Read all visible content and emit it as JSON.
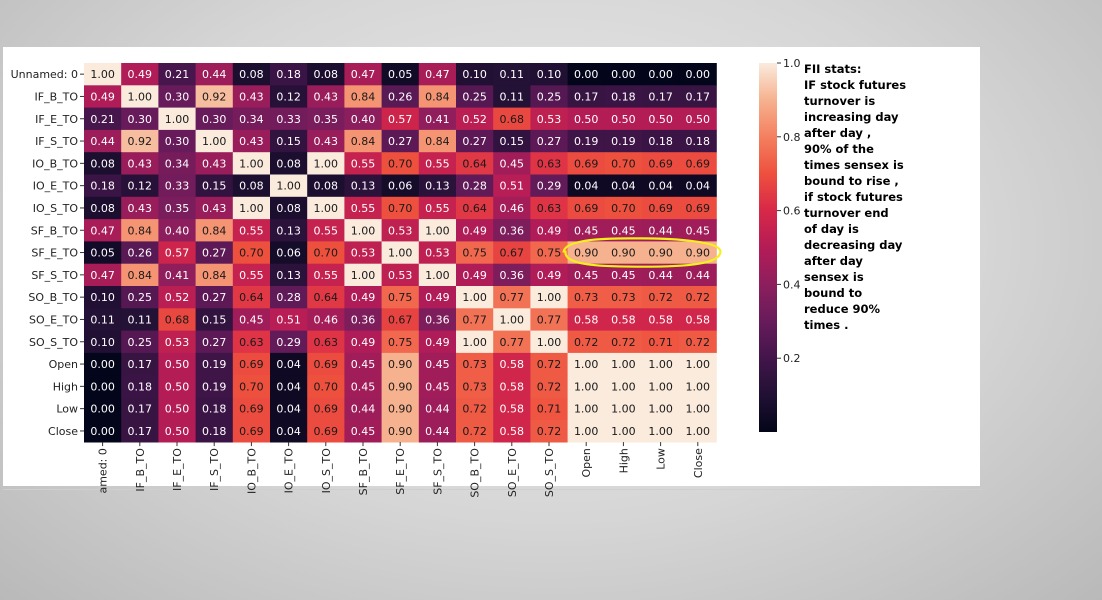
{
  "chart_data": {
    "type": "heatmap",
    "rows": [
      "Unnamed: 0",
      "IF_B_TO",
      "IF_E_TO",
      "IF_S_TO",
      "IO_B_TO",
      "IO_E_TO",
      "IO_S_TO",
      "SF_B_TO",
      "SF_E_TO",
      "SF_S_TO",
      "SO_B_TO",
      "SO_E_TO",
      "SO_S_TO",
      "Open",
      "High",
      "Low",
      "Close"
    ],
    "x_tick_labels": [
      "amed: 0",
      "IF_B_TO",
      "IF_E_TO",
      "IF_S_TO",
      "IO_B_TO",
      "IO_E_TO",
      "IO_S_TO",
      "SF_B_TO",
      "SF_E_TO",
      "SF_S_TO",
      "SO_B_TO",
      "SO_E_TO",
      "SO_S_TO",
      "Open",
      "High",
      "Low",
      "Close"
    ],
    "values": [
      [
        1.0,
        0.49,
        0.21,
        0.44,
        0.08,
        0.18,
        0.08,
        0.47,
        0.05,
        0.47,
        0.1,
        0.11,
        0.1,
        0.0,
        0.0,
        0.0,
        0.0
      ],
      [
        0.49,
        1.0,
        0.3,
        0.92,
        0.43,
        0.12,
        0.43,
        0.84,
        0.26,
        0.84,
        0.25,
        0.11,
        0.25,
        0.17,
        0.18,
        0.17,
        0.17
      ],
      [
        0.21,
        0.3,
        1.0,
        0.3,
        0.34,
        0.33,
        0.35,
        0.4,
        0.57,
        0.41,
        0.52,
        0.68,
        0.53,
        0.5,
        0.5,
        0.5,
        0.5
      ],
      [
        0.44,
        0.92,
        0.3,
        1.0,
        0.43,
        0.15,
        0.43,
        0.84,
        0.27,
        0.84,
        0.27,
        0.15,
        0.27,
        0.19,
        0.19,
        0.18,
        0.18
      ],
      [
        0.08,
        0.43,
        0.34,
        0.43,
        1.0,
        0.08,
        1.0,
        0.55,
        0.7,
        0.55,
        0.64,
        0.45,
        0.63,
        0.69,
        0.7,
        0.69,
        0.69
      ],
      [
        0.18,
        0.12,
        0.33,
        0.15,
        0.08,
        1.0,
        0.08,
        0.13,
        0.06,
        0.13,
        0.28,
        0.51,
        0.29,
        0.04,
        0.04,
        0.04,
        0.04
      ],
      [
        0.08,
        0.43,
        0.35,
        0.43,
        1.0,
        0.08,
        1.0,
        0.55,
        0.7,
        0.55,
        0.64,
        0.46,
        0.63,
        0.69,
        0.7,
        0.69,
        0.69
      ],
      [
        0.47,
        0.84,
        0.4,
        0.84,
        0.55,
        0.13,
        0.55,
        1.0,
        0.53,
        1.0,
        0.49,
        0.36,
        0.49,
        0.45,
        0.45,
        0.44,
        0.45
      ],
      [
        0.05,
        0.26,
        0.57,
        0.27,
        0.7,
        0.06,
        0.7,
        0.53,
        1.0,
        0.53,
        0.75,
        0.67,
        0.75,
        0.9,
        0.9,
        0.9,
        0.9
      ],
      [
        0.47,
        0.84,
        0.41,
        0.84,
        0.55,
        0.13,
        0.55,
        1.0,
        0.53,
        1.0,
        0.49,
        0.36,
        0.49,
        0.45,
        0.45,
        0.44,
        0.44
      ],
      [
        0.1,
        0.25,
        0.52,
        0.27,
        0.64,
        0.28,
        0.64,
        0.49,
        0.75,
        0.49,
        1.0,
        0.77,
        1.0,
        0.73,
        0.73,
        0.72,
        0.72
      ],
      [
        0.11,
        0.11,
        0.68,
        0.15,
        0.45,
        0.51,
        0.46,
        0.36,
        0.67,
        0.36,
        0.77,
        1.0,
        0.77,
        0.58,
        0.58,
        0.58,
        0.58
      ],
      [
        0.1,
        0.25,
        0.53,
        0.27,
        0.63,
        0.29,
        0.63,
        0.49,
        0.75,
        0.49,
        1.0,
        0.77,
        1.0,
        0.72,
        0.72,
        0.71,
        0.72
      ],
      [
        0.0,
        0.17,
        0.5,
        0.19,
        0.69,
        0.04,
        0.69,
        0.45,
        0.9,
        0.45,
        0.73,
        0.58,
        0.72,
        1.0,
        1.0,
        1.0,
        1.0
      ],
      [
        0.0,
        0.18,
        0.5,
        0.19,
        0.7,
        0.04,
        0.7,
        0.45,
        0.9,
        0.45,
        0.73,
        0.58,
        0.72,
        1.0,
        1.0,
        1.0,
        1.0
      ],
      [
        0.0,
        0.17,
        0.5,
        0.18,
        0.69,
        0.04,
        0.69,
        0.44,
        0.9,
        0.44,
        0.72,
        0.58,
        0.71,
        1.0,
        1.0,
        1.0,
        1.0
      ],
      [
        0.0,
        0.17,
        0.5,
        0.18,
        0.69,
        0.04,
        0.69,
        0.45,
        0.9,
        0.44,
        0.72,
        0.58,
        0.72,
        1.0,
        1.0,
        1.0,
        1.0
      ]
    ],
    "colorbar": {
      "range": [
        0.0,
        1.0
      ],
      "ticks": [
        "1.0",
        "0.8",
        "0.6",
        "0.4",
        "0.2"
      ]
    },
    "colormap": "rocket",
    "highlight": {
      "row": "SF_E_TO",
      "columns": [
        "Open",
        "High",
        "Low",
        "Close"
      ],
      "color": "#f4f01a"
    },
    "title": "",
    "xlabel": "",
    "ylabel": ""
  },
  "annotation": {
    "text": "FII stats:\nIF stock futures\nturnover is\nincreasing day\nafter day ,\n90% of the\ntimes sensex is\nbound to rise ,\nif stock futures\nturnover end\nof day is\ndecreasing day\nafter day\nsensex is\nbound to\nreduce 90%\ntimes ."
  }
}
